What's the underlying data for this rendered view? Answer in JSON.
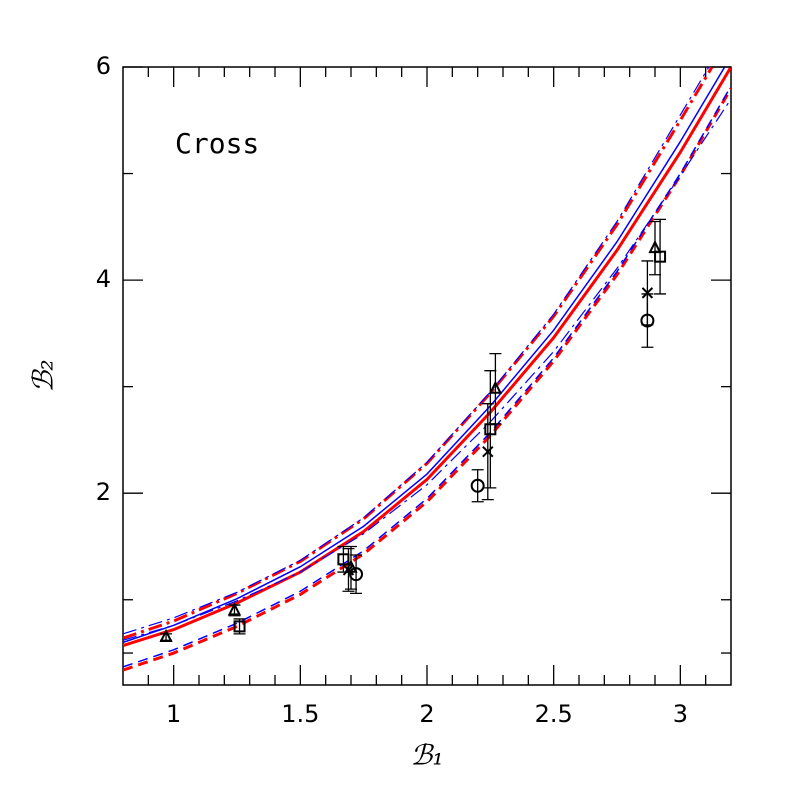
{
  "chart_data": {
    "type": "line",
    "x_label": "ℬ₁",
    "y_label": "ℬ₂",
    "annotation": "Cross",
    "xlim": [
      0.8,
      3.2
    ],
    "ylim": [
      0.2,
      6
    ],
    "xticks": [
      1,
      1.5,
      2,
      2.5,
      3
    ],
    "yticks": [
      2,
      4,
      6
    ],
    "xminorticks": [
      0.9,
      1.1,
      1.2,
      1.3,
      1.4,
      1.6,
      1.7,
      1.8,
      1.9,
      2.1,
      2.2,
      2.3,
      2.4,
      2.6,
      2.7,
      2.8,
      2.9,
      3.1
    ],
    "yminorticks": [
      0.5,
      1,
      3,
      5
    ],
    "x": [
      0.8,
      1,
      1.25,
      1.5,
      1.75,
      2,
      2.25,
      2.5,
      2.75,
      3,
      3.2
    ],
    "series": [
      {
        "color": "#ff0000",
        "style": "solid",
        "width": 3,
        "values": [
          0.57,
          0.72,
          0.97,
          1.26,
          1.64,
          2.13,
          2.76,
          3.46,
          4.28,
          5.2,
          6.0
        ]
      },
      {
        "color": "#0000ff",
        "style": "solid",
        "width": 1.5,
        "values": [
          0.6,
          0.76,
          1.01,
          1.31,
          1.69,
          2.18,
          2.82,
          3.53,
          4.36,
          5.3,
          6.1
        ]
      },
      {
        "color": "#ff0000",
        "style": "dashdot",
        "width": 3,
        "values": [
          0.64,
          0.8,
          1.06,
          1.36,
          1.76,
          2.28,
          2.94,
          3.66,
          4.52,
          5.5,
          6.3
        ]
      },
      {
        "color": "#ff0000",
        "style": "dashed",
        "width": 3,
        "values": [
          0.34,
          0.5,
          0.75,
          1.05,
          1.43,
          1.92,
          2.54,
          3.24,
          4.05,
          4.98,
          5.8
        ]
      },
      {
        "color": "#0000ff",
        "style": "dashed",
        "width": 1.5,
        "values": [
          0.37,
          0.53,
          0.78,
          1.08,
          1.46,
          1.95,
          2.57,
          3.27,
          4.08,
          5.0,
          5.82
        ]
      },
      {
        "color": "#0000ff",
        "style": "dashdot",
        "width": 1.2,
        "values": [
          0.68,
          0.83,
          1.07,
          1.37,
          1.77,
          2.29,
          2.95,
          3.68,
          4.55,
          5.55,
          6.35
        ]
      },
      {
        "color": "#0000ff",
        "style": "dashdot",
        "width": 1.2,
        "values": [
          0.62,
          0.76,
          0.99,
          1.26,
          1.62,
          2.08,
          2.67,
          3.33,
          4.11,
          4.98,
          5.7
        ]
      }
    ],
    "points": [
      {
        "marker": "circle",
        "x": [
          1.72,
          2.2,
          2.87
        ],
        "y": [
          1.24,
          2.07,
          3.62
        ],
        "yerr": [
          0.18,
          0.15,
          0.25
        ]
      },
      {
        "marker": "square",
        "x": [
          1.26,
          1.67,
          2.25,
          2.92
        ],
        "y": [
          0.75,
          1.38,
          2.6,
          4.22
        ],
        "yerr": [
          0.07,
          0.12,
          0.55,
          0.35
        ]
      },
      {
        "marker": "triangle",
        "x": [
          0.97,
          1.24,
          1.7,
          2.27,
          2.9
        ],
        "y": [
          0.65,
          0.9,
          1.3,
          2.98,
          4.3
        ],
        "yerr": [
          0.03,
          0.05,
          0.2,
          0.33,
          0.25
        ]
      },
      {
        "marker": "cross",
        "x": [
          1.69,
          2.24,
          2.87
        ],
        "y": [
          1.28,
          2.39,
          3.88
        ],
        "yerr": [
          0.2,
          0.45,
          0.3
        ]
      }
    ]
  }
}
